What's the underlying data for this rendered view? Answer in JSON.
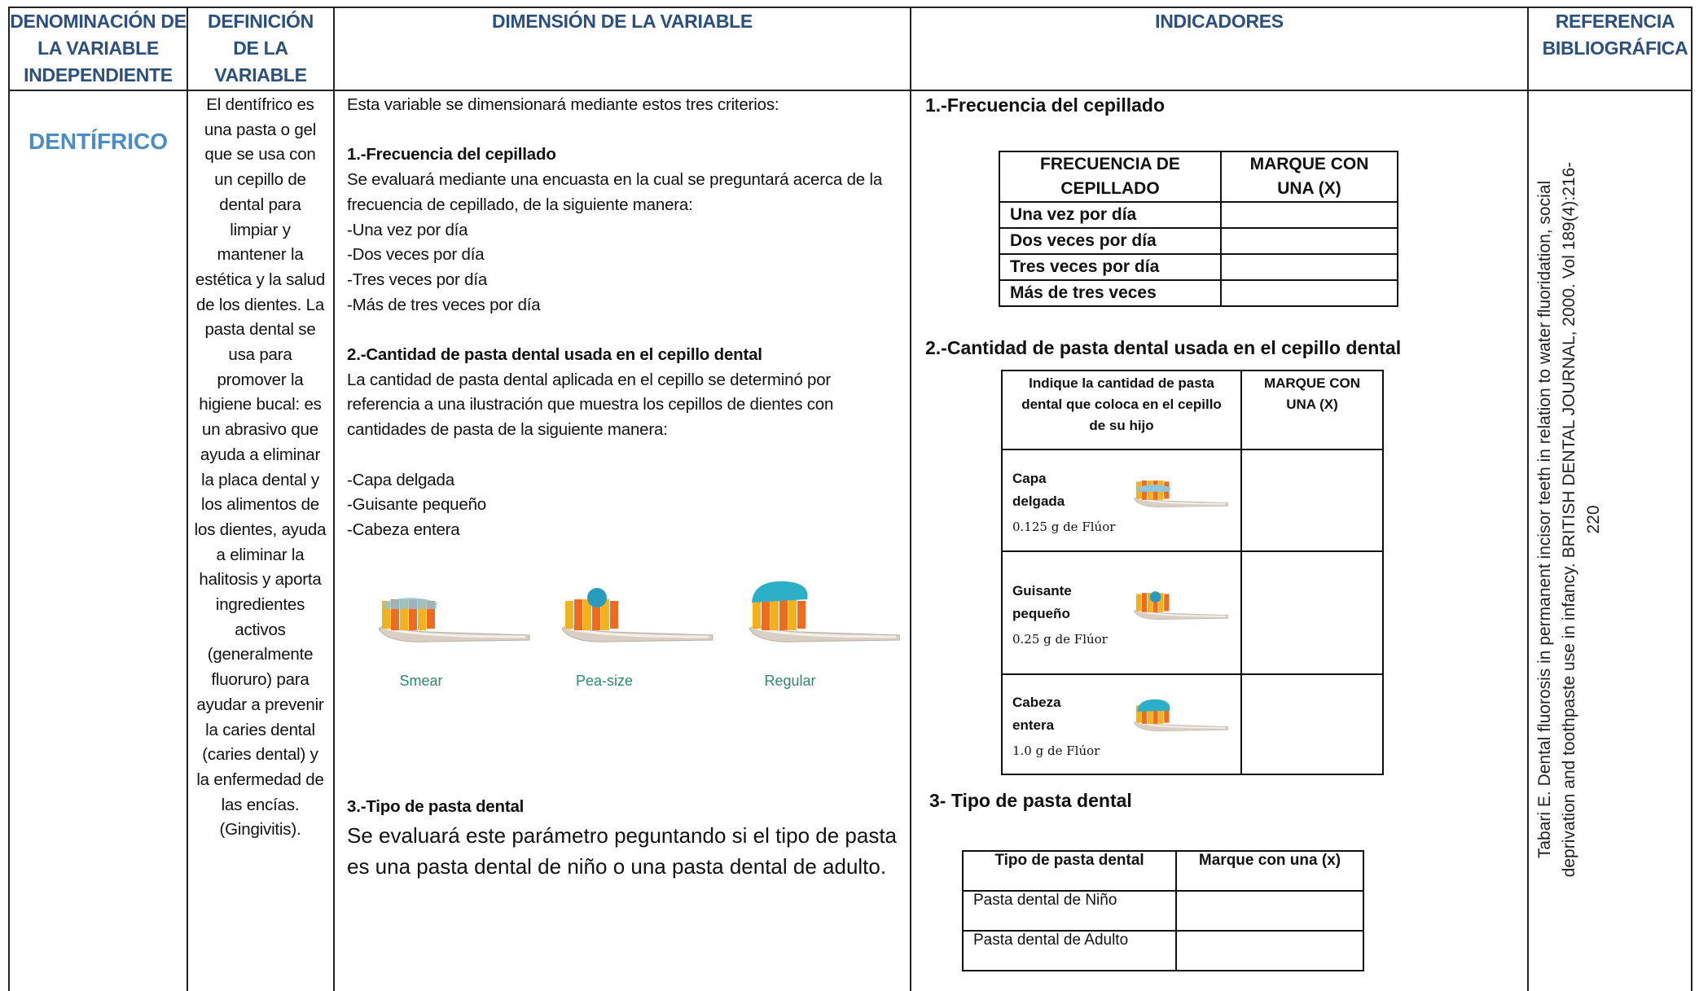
{
  "table": {
    "headers": [
      "DENOMINACIÓN DE LA VARIABLE INDEPENDIENTE",
      "DEFINICIÓN DE LA VARIABLE",
      "DIMENSIÓN DE LA VARIABLE",
      "INDICADORES",
      "REFERENCIA BIBLIOGRÁFICA"
    ],
    "variable": "DENTÍFRICO",
    "definition": "El dentífrico es una pasta o gel que se usa con un cepillo de dental para limpiar y mantener la estética y la salud de los dientes. La pasta dental se usa para promover la higiene bucal: es un abrasivo que ayuda a eliminar la placa dental y los alimentos de los dientes, ayuda a eliminar la halitosis y aporta ingredientes activos (generalmente fluoruro) para ayudar a prevenir la caries dental (caries dental) y la enfermedad de las encías. (Gingivitis).",
    "dimension": {
      "intro": "Esta variable se dimensionará mediante estos tres criterios:",
      "sections": [
        {
          "title": "1.-Frecuencia del cepillado",
          "text": "Se evaluará mediante una encuasta en la cual se preguntará acerca de la frecuencia de cepillado, de la siguiente manera:",
          "items": [
            "-Una vez por día",
            "-Dos veces por día",
            "-Tres veces por día",
            "-Más de tres veces por día"
          ]
        },
        {
          "title": "2.-Cantidad de pasta dental usada en el cepillo dental",
          "text": "La cantidad de pasta dental aplicada en el cepillo se determinó por referencia a una ilustración que muestra los cepillos de dientes con cantidades de pasta de la siguiente manera:",
          "items": [
            "-Capa delgada",
            "-Guisante pequeño",
            "-Cabeza entera"
          ]
        },
        {
          "title": "3.-Tipo de pasta dental",
          "text": "Se evaluará este parámetro peguntando si el tipo de pasta es una pasta dental de niño o una pasta dental de adulto."
        }
      ],
      "image_labels": [
        "Smear",
        "Pea-size",
        "Regular"
      ]
    },
    "indicators": {
      "frequency": {
        "title": "1.-Frecuencia del cepillado",
        "headers": [
          "FRECUENCIA DE CEPILLADO",
          "MARQUE CON UNA (X)"
        ],
        "rows": [
          "Una vez por día",
          "Dos veces por día",
          "Tres veces por día",
          "Más de tres veces"
        ]
      },
      "amount": {
        "title": "2.-Cantidad de pasta dental usada en el cepillo dental",
        "headers": [
          "Indique la cantidad de pasta dental que coloca en el cepillo de su hijo",
          "MARQUE CON UNA (X)"
        ],
        "rows": [
          {
            "label": "Capa delgada",
            "dose": "0.125 g de Flúor"
          },
          {
            "label": "Guisante pequeño",
            "dose": "0.25 g de Flúor"
          },
          {
            "label": "Cabeza entera",
            "dose": "1.0 g de Flúor"
          }
        ]
      },
      "type": {
        "title": "3- Tipo de pasta dental",
        "headers": [
          "Tipo de pasta dental",
          "Marque con una (x)"
        ],
        "rows": [
          "Pasta dental de Niño",
          "Pasta dental de Adulto"
        ]
      }
    },
    "reference": "Tabari E. Dental fluorosis in permanent incisor teeth in relation to water fluoridation, social deprivation and toothpaste use in infancy. BRITISH DENTAL JOURNAL, 2000. Vol 189(4):216-220"
  }
}
